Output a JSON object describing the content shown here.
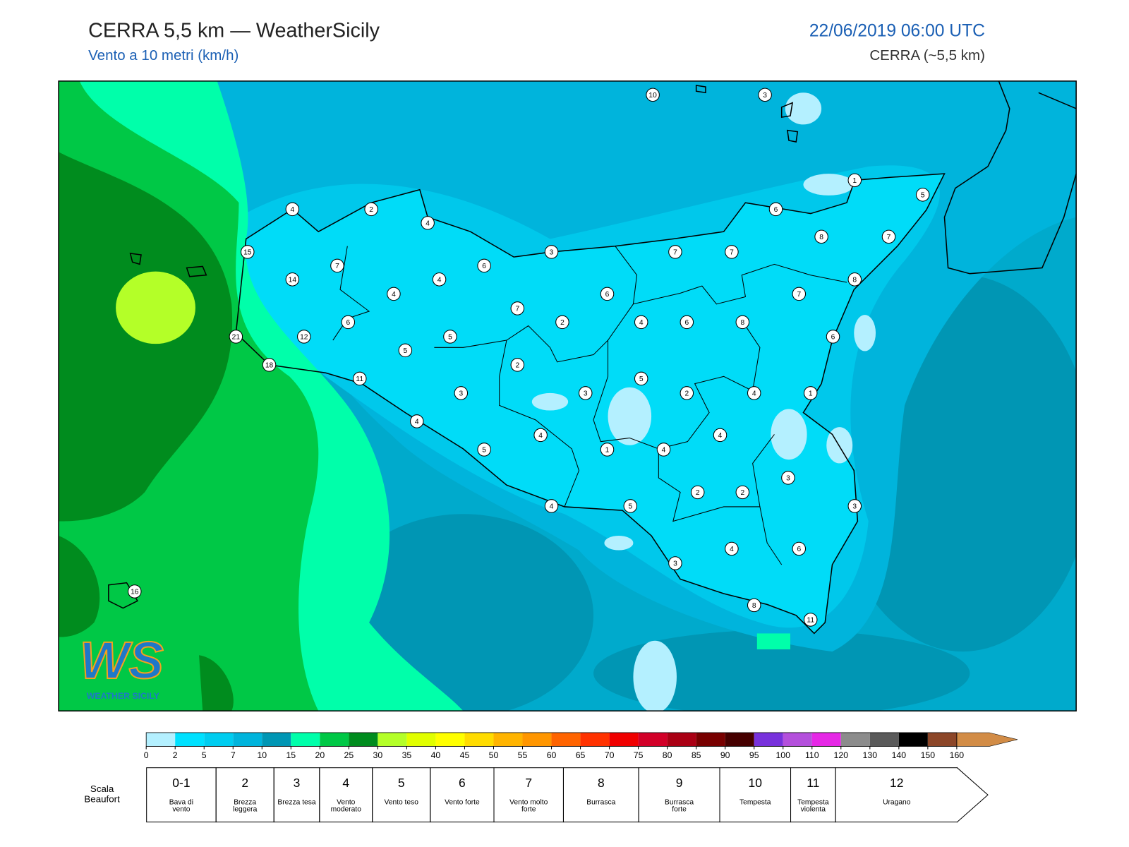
{
  "header": {
    "title": "CERRA 5,5 km — WeatherSicily",
    "subtitle": "Vento a 10 metri (km/h)",
    "datetime": "22/06/2019 06:00 UTC",
    "model": "CERRA (~5,5 km)"
  },
  "logo": {
    "mark": "WS",
    "text": "WEATHER SICILY"
  },
  "stations": {
    "values": [
      10,
      3,
      1,
      5,
      4,
      2,
      4,
      6,
      8,
      7,
      15,
      3,
      7,
      7,
      7,
      6,
      14,
      4,
      8,
      4,
      6,
      7,
      7,
      6,
      2,
      4,
      6,
      8,
      21,
      12,
      5,
      6,
      5,
      18,
      2,
      11,
      5,
      3,
      3,
      2,
      4,
      1,
      4,
      4,
      4,
      5,
      1,
      4,
      3,
      2,
      2,
      4,
      5,
      3,
      4,
      6,
      3,
      8,
      11,
      16
    ]
  },
  "colorbar": {
    "ticks": [
      0,
      2,
      5,
      7,
      10,
      15,
      20,
      25,
      30,
      35,
      40,
      45,
      50,
      55,
      60,
      65,
      70,
      75,
      80,
      85,
      90,
      95,
      100,
      110,
      120,
      130,
      140,
      150,
      160
    ],
    "colors": [
      "#b4f0ff",
      "#00e1ff",
      "#00cdf0",
      "#00b4dc",
      "#0096b4",
      "#00ffaa",
      "#00c846",
      "#008c1e",
      "#b4ff28",
      "#e1ff00",
      "#ffff00",
      "#ffdc00",
      "#ffb400",
      "#ff9600",
      "#ff6400",
      "#ff3200",
      "#f00000",
      "#d20028",
      "#aa0014",
      "#780000",
      "#460000",
      "#7832dc",
      "#b450dc",
      "#e628e6",
      "#8c8c8c",
      "#5a5a5a",
      "#000000",
      "#8c4628",
      "#d28c46"
    ]
  },
  "beaufort": {
    "label": "Scala Beaufort",
    "levels": [
      {
        "force": "0-1",
        "label": "Bava di vento"
      },
      {
        "force": 2,
        "label": "Brezza leggera"
      },
      {
        "force": 3,
        "label": "Brezza tesa"
      },
      {
        "force": 4,
        "label": "Vento moderato"
      },
      {
        "force": 5,
        "label": "Vento teso"
      },
      {
        "force": 6,
        "label": "Vento forte"
      },
      {
        "force": 7,
        "label": "Vento molto forte"
      },
      {
        "force": 8,
        "label": "Burrasca"
      },
      {
        "force": 9,
        "label": "Burrasca forte"
      },
      {
        "force": 10,
        "label": "Tempesta"
      },
      {
        "force": 11,
        "label": "Tempesta violenta"
      },
      {
        "force": 12,
        "label": "Uragano"
      }
    ]
  }
}
